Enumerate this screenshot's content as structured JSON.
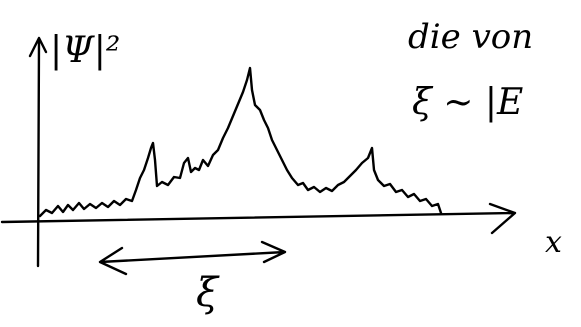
{
  "labels": {
    "y_axis": "|Ψ|²",
    "x_axis": "x",
    "width": "ξ",
    "note_line1": "die von",
    "note_line2": "ξ ~ |E"
  }
}
